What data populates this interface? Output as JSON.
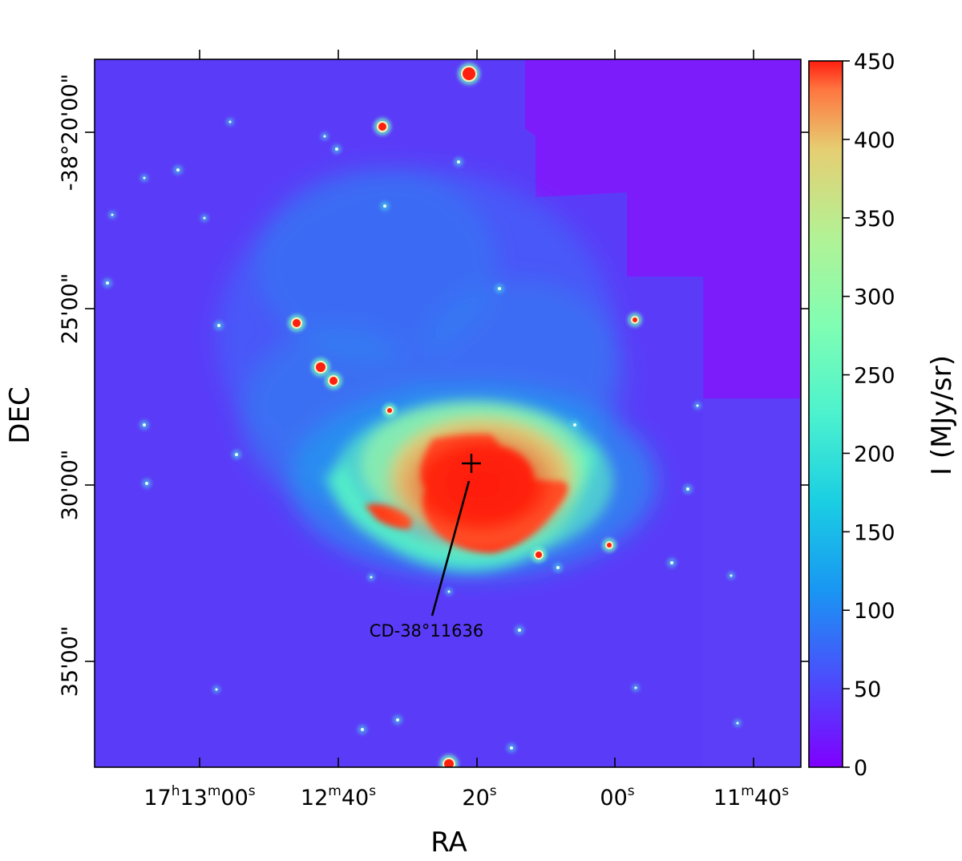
{
  "figure": {
    "xlabel": "RA",
    "ylabel": "DEC",
    "ra_ticks": [
      {
        "h": "17",
        "m": "13",
        "s": "00"
      },
      {
        "m": "12",
        "s": "40"
      },
      {
        "s": "20"
      },
      {
        "s": "00"
      },
      {
        "m": "11",
        "s": "40"
      }
    ],
    "dec_ticks": [
      "-38°20'00\"",
      "25'00\"",
      "30'00\"",
      "35'00\""
    ],
    "colorbar": {
      "label": "I (MJy/sr)",
      "ticks": [
        "0",
        "50",
        "100",
        "150",
        "200",
        "250",
        "300",
        "350",
        "400",
        "450"
      ],
      "min": 0,
      "max": 450,
      "colormap": "rainbow"
    },
    "annotation": {
      "label": "CD-38°11636",
      "marker": "plus"
    }
  }
}
